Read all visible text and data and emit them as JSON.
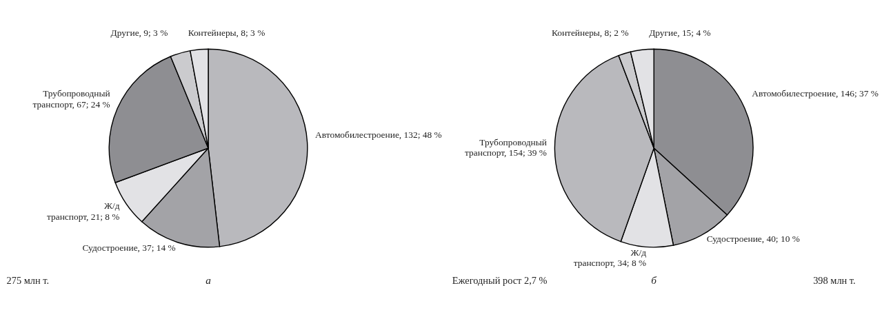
{
  "chart_data": [
    {
      "type": "pie",
      "title": "а",
      "legend": false,
      "categories": [
        "Автомобилестроение",
        "Судостроение",
        "Ж/д транспорт",
        "Трубопроводный транспорт",
        "Другие",
        "Контейнеры"
      ],
      "values": [
        132,
        37,
        21,
        67,
        9,
        8
      ],
      "value_labels": [
        "132; 48 %",
        "37; 14 %",
        "21; 8 %",
        "67; 24 %",
        "9; 3 %",
        "8; 3 %"
      ],
      "colors": [
        "#b9b9bd",
        "#a3a3a7",
        "#e2e2e5",
        "#8e8e92",
        "#cbcbce",
        "#e2e2e5"
      ],
      "annotations": [
        "275 млн т."
      ]
    },
    {
      "type": "pie",
      "title": "б",
      "legend": false,
      "categories": [
        "Автомобилестроение",
        "Судостроение",
        "Ж/д транспорт",
        "Трубопроводный транспорт",
        "Контейнеры",
        "Другие"
      ],
      "values": [
        146,
        40,
        34,
        154,
        8,
        15
      ],
      "value_labels": [
        "146; 37 %",
        "40; 10 %",
        "34; 8 %",
        "154; 39 %",
        "8; 2 %",
        "15; 4 %"
      ],
      "colors": [
        "#8e8e92",
        "#a3a3a7",
        "#e2e2e5",
        "#b9b9bd",
        "#cbcbce",
        "#e2e2e5"
      ],
      "annotations": [
        "Ежегодный рост 2,7 %",
        "398 млн т."
      ]
    }
  ]
}
